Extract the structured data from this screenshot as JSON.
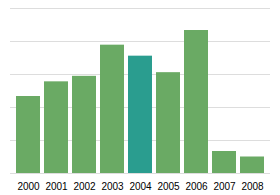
{
  "chart_data": {
    "type": "bar",
    "categories": [
      "2000",
      "2001",
      "2002",
      "2003",
      "2004",
      "2005",
      "2006",
      "2007",
      "2008"
    ],
    "values": [
      42,
      50,
      53,
      70,
      64,
      55,
      78,
      12,
      9
    ],
    "colors": [
      "#6aaa64",
      "#6aaa64",
      "#6aaa64",
      "#6aaa64",
      "#2a9d8f",
      "#6aaa64",
      "#6aaa64",
      "#6aaa64",
      "#6aaa64"
    ],
    "ylim": [
      0,
      90
    ],
    "yticks": [
      0,
      18,
      36,
      54,
      72,
      90
    ],
    "grid": true,
    "tick_labels": "x"
  }
}
